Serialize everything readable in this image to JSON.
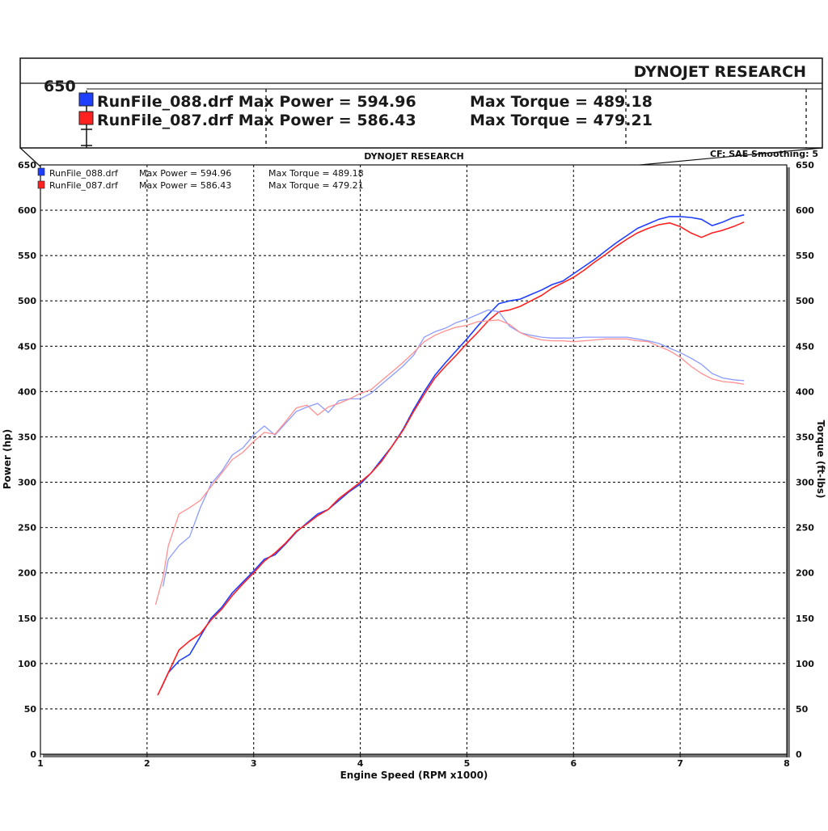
{
  "chart_data": {
    "type": "line",
    "title": "DYNOJET RESEARCH",
    "corner_note": "CF: SAE  Smoothing: 5",
    "xlabel": "Engine Speed (RPM x1000)",
    "ylabel_left": "Power (hp)",
    "ylabel_right": "Torque (ft-lbs)",
    "xlim": [
      1,
      8
    ],
    "ylim": [
      0,
      650
    ],
    "x_ticks": [
      1,
      2,
      3,
      4,
      5,
      6,
      7,
      8
    ],
    "y_ticks": [
      0,
      50,
      100,
      150,
      200,
      250,
      300,
      350,
      400,
      450,
      500,
      550,
      600,
      650
    ],
    "grid": true,
    "legend_position": "top-left",
    "colors": {
      "run_088": "#1f3fff",
      "run_087": "#ff2020",
      "run_088_torque": "#8c9cff",
      "run_087_torque": "#ff9090"
    },
    "legend": [
      {
        "run": "RunFile_088.drf",
        "max_power_label": "Max Power = 594.96",
        "max_torque_label": "Max Torque = 489.18",
        "color": "#1f3fff"
      },
      {
        "run": "RunFile_087.drf",
        "max_power_label": "Max Power = 586.43",
        "max_torque_label": "Max Torque = 479.21",
        "color": "#ff2020"
      }
    ],
    "zoom_inset": {
      "title": "DYNOJET RESEARCH",
      "axis_value": "650",
      "rows": [
        {
          "text": "RunFile_088.drf Max Power = 594.96",
          "torque": "Max Torque = 489.18",
          "color": "#1f3fff"
        },
        {
          "text": "RunFile_087.drf Max Power = 586.43",
          "torque": "Max Torque = 479.21",
          "color": "#ff2020"
        }
      ]
    },
    "series": [
      {
        "name": "RunFile_088.drf Power",
        "color": "#1f3fff",
        "x": [
          2.13,
          2.2,
          2.3,
          2.4,
          2.5,
          2.6,
          2.7,
          2.8,
          2.9,
          3.0,
          3.1,
          3.2,
          3.3,
          3.4,
          3.5,
          3.6,
          3.7,
          3.8,
          3.9,
          4.0,
          4.1,
          4.2,
          4.3,
          4.4,
          4.5,
          4.6,
          4.7,
          4.8,
          4.9,
          5.0,
          5.1,
          5.2,
          5.3,
          5.4,
          5.5,
          5.6,
          5.7,
          5.8,
          5.9,
          6.0,
          6.1,
          6.2,
          6.3,
          6.4,
          6.5,
          6.6,
          6.7,
          6.8,
          6.9,
          7.0,
          7.1,
          7.2,
          7.3,
          7.4,
          7.5,
          7.6
        ],
        "values": [
          72,
          90,
          103,
          110,
          130,
          150,
          162,
          178,
          190,
          202,
          215,
          220,
          232,
          245,
          255,
          265,
          270,
          280,
          290,
          298,
          310,
          325,
          340,
          358,
          380,
          400,
          418,
          432,
          445,
          458,
          472,
          485,
          497,
          500,
          502,
          507,
          512,
          518,
          522,
          530,
          538,
          546,
          555,
          564,
          572,
          580,
          585,
          590,
          593,
          593,
          592,
          590,
          583,
          587,
          592,
          595
        ]
      },
      {
        "name": "RunFile_087.drf Power",
        "color": "#ff2020",
        "x": [
          2.1,
          2.2,
          2.3,
          2.4,
          2.5,
          2.6,
          2.7,
          2.8,
          2.9,
          3.0,
          3.1,
          3.2,
          3.3,
          3.4,
          3.5,
          3.6,
          3.7,
          3.8,
          3.9,
          4.0,
          4.1,
          4.2,
          4.3,
          4.4,
          4.5,
          4.6,
          4.7,
          4.8,
          4.9,
          5.0,
          5.1,
          5.2,
          5.3,
          5.4,
          5.5,
          5.6,
          5.7,
          5.8,
          5.9,
          6.0,
          6.1,
          6.2,
          6.3,
          6.4,
          6.5,
          6.6,
          6.7,
          6.8,
          6.9,
          7.0,
          7.1,
          7.2,
          7.3,
          7.4,
          7.5,
          7.6
        ],
        "values": [
          65,
          90,
          115,
          125,
          133,
          148,
          160,
          175,
          188,
          200,
          213,
          222,
          233,
          246,
          254,
          263,
          270,
          282,
          291,
          300,
          310,
          323,
          340,
          357,
          378,
          397,
          415,
          428,
          440,
          453,
          465,
          478,
          488,
          490,
          494,
          500,
          506,
          514,
          520,
          526,
          534,
          543,
          551,
          560,
          568,
          575,
          580,
          584,
          586,
          582,
          575,
          570,
          575,
          578,
          582,
          587
        ]
      },
      {
        "name": "RunFile_088.drf Torque",
        "color": "#8c9cff",
        "x": [
          2.15,
          2.2,
          2.3,
          2.4,
          2.5,
          2.6,
          2.7,
          2.8,
          2.9,
          3.0,
          3.1,
          3.2,
          3.3,
          3.4,
          3.5,
          3.6,
          3.7,
          3.8,
          3.9,
          4.0,
          4.1,
          4.2,
          4.3,
          4.4,
          4.5,
          4.6,
          4.7,
          4.8,
          4.9,
          5.0,
          5.1,
          5.2,
          5.3,
          5.4,
          5.5,
          5.6,
          5.7,
          5.8,
          5.9,
          6.0,
          6.1,
          6.2,
          6.3,
          6.4,
          6.5,
          6.6,
          6.7,
          6.8,
          6.9,
          7.0,
          7.1,
          7.2,
          7.3,
          7.4,
          7.5,
          7.6
        ],
        "values": [
          185,
          215,
          230,
          240,
          272,
          298,
          312,
          330,
          338,
          352,
          362,
          352,
          365,
          378,
          383,
          387,
          377,
          390,
          392,
          392,
          398,
          408,
          418,
          428,
          440,
          460,
          466,
          470,
          476,
          480,
          485,
          490,
          488,
          472,
          465,
          462,
          460,
          459,
          459,
          459,
          460,
          460,
          460,
          460,
          460,
          458,
          456,
          453,
          448,
          443,
          437,
          430,
          420,
          415,
          413,
          412
        ]
      },
      {
        "name": "RunFile_087.drf Torque",
        "color": "#ff9090",
        "x": [
          2.08,
          2.15,
          2.2,
          2.3,
          2.4,
          2.5,
          2.6,
          2.7,
          2.8,
          2.9,
          3.0,
          3.1,
          3.2,
          3.3,
          3.4,
          3.5,
          3.6,
          3.7,
          3.8,
          3.9,
          4.0,
          4.1,
          4.2,
          4.3,
          4.4,
          4.5,
          4.6,
          4.7,
          4.8,
          4.9,
          5.0,
          5.1,
          5.2,
          5.3,
          5.4,
          5.5,
          5.6,
          5.7,
          5.8,
          5.9,
          6.0,
          6.1,
          6.2,
          6.3,
          6.4,
          6.5,
          6.6,
          6.7,
          6.8,
          6.9,
          7.0,
          7.1,
          7.2,
          7.3,
          7.4,
          7.5,
          7.6
        ],
        "values": [
          165,
          195,
          230,
          265,
          272,
          280,
          295,
          310,
          325,
          333,
          345,
          355,
          353,
          367,
          382,
          385,
          374,
          383,
          387,
          392,
          398,
          402,
          412,
          422,
          432,
          443,
          455,
          462,
          467,
          471,
          473,
          477,
          478,
          479,
          474,
          465,
          460,
          457,
          456,
          456,
          455,
          456,
          457,
          458,
          458,
          458,
          456,
          455,
          450,
          445,
          438,
          428,
          420,
          414,
          411,
          410,
          408
        ]
      }
    ]
  }
}
